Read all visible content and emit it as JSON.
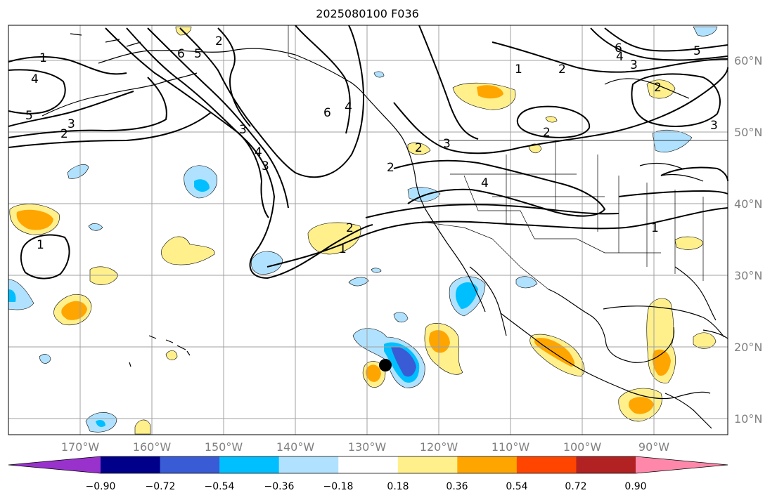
{
  "title": "2025080100 F036",
  "lon_labels": [
    "170°W",
    "160°W",
    "150°W",
    "140°W",
    "130°W",
    "120°W",
    "110°W",
    "100°W",
    "90°W"
  ],
  "lat_labels": [
    "60°N",
    "50°N",
    "40°N",
    "30°N",
    "20°N",
    "10°N"
  ],
  "colorbar": {
    "tick_labels": [
      "−0.90",
      "−0.72",
      "−0.54",
      "−0.36",
      "−0.18",
      "0.18",
      "0.36",
      "0.54",
      "0.72",
      "0.90"
    ],
    "colors": [
      "#9932cc",
      "#00008b",
      "#3a5bd6",
      "#00bfff",
      "#b0e2ff",
      "#ffffff",
      "#fff08c",
      "#ffa500",
      "#ff4500",
      "#b22222",
      "#ff88aa"
    ]
  },
  "contour_labels": [
    "1",
    "4",
    "5",
    "2",
    "3",
    "6",
    "5",
    "2",
    "3",
    "4",
    "3",
    "6",
    "4",
    "1",
    "2",
    "3",
    "6",
    "5",
    "4",
    "3",
    "2",
    "1",
    "2",
    "1",
    "2",
    "1",
    "3",
    "2",
    "4",
    "2"
  ],
  "colors": {
    "land_line": "#000000",
    "grid": "#a0a0a0",
    "contour": "#000000"
  }
}
